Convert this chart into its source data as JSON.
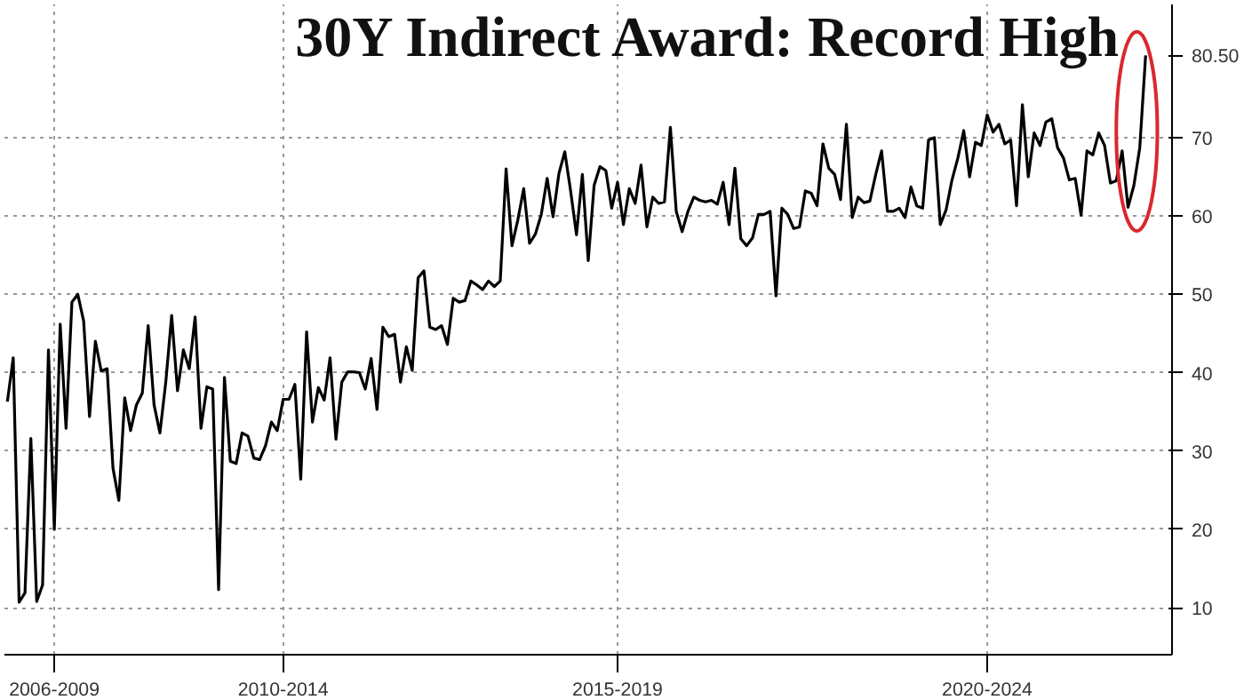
{
  "chart_data": {
    "type": "line",
    "title": "30Y Indirect Award: Record High",
    "categories": [
      null,
      null,
      null,
      null,
      null,
      null,
      null,
      null,
      "2006-2009",
      null,
      null,
      null,
      null,
      null,
      null,
      null,
      null,
      null,
      null,
      null,
      null,
      null,
      null,
      null,
      null,
      null,
      null,
      null,
      null,
      null,
      null,
      null,
      null,
      null,
      null,
      null,
      null,
      null,
      null,
      null,
      null,
      null,
      null,
      null,
      null,
      null,
      null,
      "2010-2014",
      null,
      null,
      null,
      null,
      null,
      null,
      null,
      null,
      null,
      null,
      null,
      null,
      null,
      null,
      null,
      null,
      null,
      null,
      null,
      null,
      null,
      null,
      null,
      null,
      null,
      null,
      null,
      null,
      null,
      null,
      null,
      null,
      null,
      null,
      null,
      null,
      null,
      null,
      null,
      null,
      null,
      null,
      null,
      null,
      null,
      null,
      null,
      null,
      null,
      null,
      null,
      null,
      null,
      null,
      null,
      null,
      "2015-2019",
      null,
      null,
      null,
      null,
      null,
      null,
      null,
      null,
      null,
      null,
      null,
      null,
      null,
      null,
      null,
      null,
      null,
      null,
      null,
      null,
      null,
      null,
      null,
      null,
      null,
      null,
      null,
      null,
      null,
      null,
      null,
      null,
      null,
      null,
      null,
      null,
      null,
      null,
      null,
      null,
      null,
      null,
      null,
      null,
      null,
      null,
      null,
      null,
      null,
      null,
      null,
      null,
      null,
      null,
      null,
      null,
      null,
      null,
      null,
      null,
      null,
      null,
      "2020-2024",
      null,
      null,
      null,
      null,
      null,
      null,
      null,
      null,
      null,
      null,
      null,
      null,
      null,
      null,
      null,
      null,
      null,
      null,
      null,
      null,
      null,
      null,
      null,
      null,
      null,
      null,
      null
    ],
    "series": [
      {
        "color": "#000000",
        "values": [
          36.3,
          41.9,
          10.7,
          11.9,
          31.6,
          10.8,
          12.9,
          42.9,
          20.0,
          46.2,
          32.9,
          49.0,
          50.0,
          46.6,
          34.4,
          44.0,
          40.2,
          40.5,
          27.8,
          23.7,
          36.8,
          32.6,
          35.9,
          37.4,
          46.0,
          35.9,
          32.3,
          38.8,
          47.3,
          37.7,
          42.9,
          40.5,
          47.1,
          32.9,
          38.2,
          37.9,
          12.3,
          39.4,
          28.7,
          28.4,
          32.3,
          31.9,
          29.1,
          28.9,
          30.7,
          33.7,
          32.6,
          36.6,
          36.6,
          38.5,
          26.4,
          45.2,
          33.7,
          38.1,
          36.5,
          41.9,
          31.5,
          38.8,
          40.1,
          40.1,
          40.0,
          37.9,
          41.8,
          35.3,
          45.8,
          44.6,
          44.9,
          38.8,
          43.3,
          40.3,
          52.1,
          53.0,
          45.8,
          45.5,
          46.0,
          43.6,
          49.5,
          49.0,
          49.2,
          51.7,
          51.2,
          50.6,
          51.7,
          51.0,
          51.7,
          66.0,
          56.2,
          59.5,
          63.5,
          56.5,
          57.7,
          60.2,
          64.8,
          59.9,
          65.4,
          68.2,
          63.2,
          57.6,
          65.3,
          54.3,
          63.9,
          66.3,
          65.8,
          61.0,
          64.3,
          58.9,
          63.5,
          61.6,
          66.5,
          58.6,
          62.4,
          61.6,
          61.8,
          71.3,
          60.6,
          58.0,
          60.6,
          62.4,
          62.0,
          61.8,
          62.0,
          61.5,
          64.3,
          58.9,
          66.1,
          57.1,
          56.2,
          57.2,
          60.2,
          60.2,
          60.6,
          49.8,
          61.0,
          60.2,
          58.4,
          58.6,
          63.2,
          62.9,
          61.3,
          69.2,
          66.1,
          65.3,
          62.1,
          71.7,
          59.8,
          62.4,
          61.7,
          61.9,
          65.3,
          68.3,
          60.6,
          60.6,
          61.0,
          59.8,
          63.7,
          61.3,
          61.0,
          69.7,
          70.0,
          58.9,
          60.8,
          64.6,
          67.4,
          70.9,
          65.0,
          69.4,
          69.0,
          72.9,
          70.7,
          71.7,
          69.2,
          69.7,
          61.3,
          74.2,
          65.0,
          70.6,
          69.0,
          72.0,
          72.4,
          68.7,
          67.4,
          64.6,
          64.8,
          60.1,
          68.3,
          67.8,
          70.6,
          69.0,
          64.2,
          64.5,
          68.3,
          61.1,
          63.9,
          68.7,
          80.5
        ]
      }
    ],
    "ylim": [
      4,
      87
    ],
    "yticks": [
      10,
      20,
      30,
      40,
      50,
      60,
      70
    ],
    "annotations": [
      "80.50"
    ],
    "grid": true,
    "line_style": "solid",
    "marker": "none"
  }
}
